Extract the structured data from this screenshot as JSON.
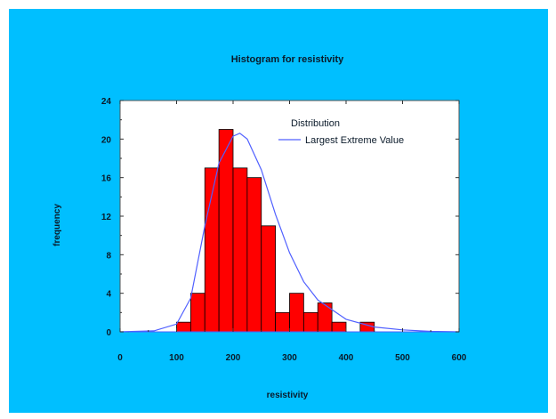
{
  "chart_data": {
    "type": "bar",
    "title": "Histogram for resistivity",
    "xlabel": "resistivity",
    "ylabel": "frequency",
    "xlim": [
      0,
      600
    ],
    "ylim": [
      0,
      24
    ],
    "xticks": [
      0,
      100,
      200,
      300,
      400,
      500,
      600
    ],
    "yticks": [
      0,
      4,
      8,
      12,
      16,
      20,
      24
    ],
    "bin_width": 25,
    "bins": [
      {
        "x0": 75,
        "count": 0
      },
      {
        "x0": 100,
        "count": 1
      },
      {
        "x0": 125,
        "count": 4
      },
      {
        "x0": 150,
        "count": 17
      },
      {
        "x0": 175,
        "count": 21
      },
      {
        "x0": 200,
        "count": 17
      },
      {
        "x0": 225,
        "count": 16
      },
      {
        "x0": 250,
        "count": 11
      },
      {
        "x0": 275,
        "count": 2
      },
      {
        "x0": 300,
        "count": 4
      },
      {
        "x0": 325,
        "count": 2
      },
      {
        "x0": 350,
        "count": 3
      },
      {
        "x0": 375,
        "count": 1
      },
      {
        "x0": 400,
        "count": 0
      },
      {
        "x0": 425,
        "count": 1
      },
      {
        "x0": 450,
        "count": 0
      }
    ],
    "bar_color": "#ff0000",
    "legend": {
      "title": "Distribution",
      "entries": [
        {
          "name": "Largest Extreme Value",
          "color": "#5060ff"
        }
      ],
      "position": "top-right"
    },
    "fitted_curve": {
      "name": "Largest Extreme Value",
      "color": "#5060ff",
      "x": [
        0,
        60,
        100,
        125,
        150,
        175,
        200,
        212,
        225,
        250,
        275,
        300,
        325,
        350,
        400,
        450,
        500,
        550,
        600
      ],
      "y": [
        0,
        0.1,
        0.8,
        3.5,
        11,
        17.5,
        20.3,
        20.6,
        20.0,
        16.8,
        12.2,
        8.2,
        5.2,
        3.3,
        1.3,
        0.5,
        0.2,
        0.05,
        0
      ]
    }
  }
}
